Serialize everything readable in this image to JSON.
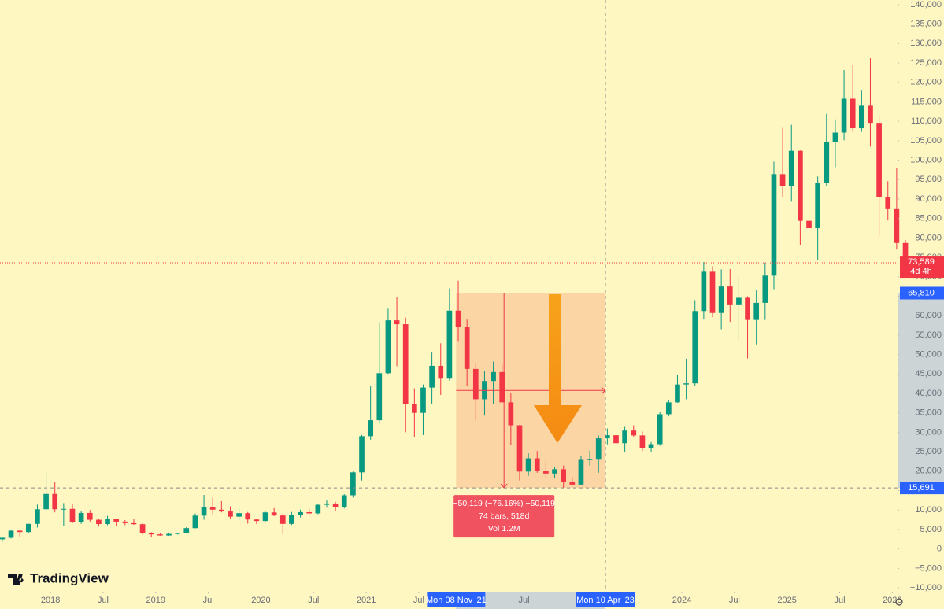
{
  "brand": "TradingView",
  "chart_data": {
    "type": "candlestick",
    "x": [
      "2017-07",
      "2017-08",
      "2017-09",
      "2017-10",
      "2017-11",
      "2017-12",
      "2018-01",
      "2018-02",
      "2018-03",
      "2018-04",
      "2018-05",
      "2018-06",
      "2018-07",
      "2018-08",
      "2018-09",
      "2018-10",
      "2018-11",
      "2018-12",
      "2019-01",
      "2019-02",
      "2019-03",
      "2019-04",
      "2019-05",
      "2019-06",
      "2019-07",
      "2019-08",
      "2019-09",
      "2019-10",
      "2019-11",
      "2019-12",
      "2020-01",
      "2020-02",
      "2020-03",
      "2020-04",
      "2020-05",
      "2020-06",
      "2020-07",
      "2020-08",
      "2020-09",
      "2020-10",
      "2020-11",
      "2020-12",
      "2021-01",
      "2021-02",
      "2021-03",
      "2021-04",
      "2021-05",
      "2021-06",
      "2021-07",
      "2021-08",
      "2021-09",
      "2021-10",
      "2021-11",
      "2021-12",
      "2022-01",
      "2022-02",
      "2022-03",
      "2022-04",
      "2022-05",
      "2022-06",
      "2022-07",
      "2022-08",
      "2022-09",
      "2022-10",
      "2022-11",
      "2022-12",
      "2023-01",
      "2023-02",
      "2023-03",
      "2023-04",
      "2023-05",
      "2023-06",
      "2023-07",
      "2023-08",
      "2023-09",
      "2023-10",
      "2023-11",
      "2023-12",
      "2024-01",
      "2024-02",
      "2024-03",
      "2024-04",
      "2024-05",
      "2024-06",
      "2024-07",
      "2024-08",
      "2024-09",
      "2024-10",
      "2024-11",
      "2024-12",
      "2025-01",
      "2025-02",
      "2025-03",
      "2025-04",
      "2025-05",
      "2025-06",
      "2025-07",
      "2025-08",
      "2025-09",
      "2025-10",
      "2025-11",
      "2025-12",
      "2026-01",
      "2026-02"
    ],
    "open": [
      2480,
      2870,
      4700,
      4340,
      6450,
      10200,
      14150,
      10200,
      10300,
      6950,
      9250,
      7500,
      6400,
      7730,
      7030,
      6630,
      6370,
      4040,
      3740,
      3460,
      3860,
      4100,
      5350,
      8570,
      10820,
      10090,
      9630,
      8300,
      9200,
      7570,
      7190,
      9390,
      8600,
      6440,
      8650,
      9450,
      9140,
      11350,
      11680,
      10790,
      13800,
      19700,
      29000,
      33100,
      45200,
      58800,
      57800,
      37300,
      35000,
      41500,
      47100,
      43800,
      61300,
      57000,
      46300,
      38500,
      43200,
      45500,
      37700,
      31800,
      19900,
      23300,
      20050,
      19400,
      20500,
      17150,
      16550,
      23100,
      23150,
      28450,
      29250,
      27200,
      30450,
      29200,
      25950,
      26950,
      34650,
      37700,
      42300,
      42600,
      61200,
      71300,
      60700,
      67500,
      62700,
      64600,
      58900,
      63300,
      70300,
      96400,
      93400,
      102400,
      84400,
      82500,
      94200,
      104600,
      107100,
      115800,
      108200,
      114000,
      109600,
      90400,
      87600,
      78700
    ],
    "high": [
      2950,
      4750,
      4980,
      6470,
      11400,
      19700,
      17250,
      11800,
      11700,
      9750,
      10000,
      7750,
      8500,
      7750,
      7420,
      7680,
      6600,
      4300,
      4130,
      4200,
      4150,
      5600,
      9100,
      13900,
      13200,
      12300,
      10950,
      10500,
      9500,
      7750,
      9600,
      10500,
      9200,
      9500,
      10080,
      10400,
      11450,
      12480,
      12100,
      14100,
      19900,
      29300,
      41900,
      58350,
      61800,
      64850,
      59500,
      41300,
      42300,
      50500,
      52900,
      67000,
      69000,
      59000,
      47900,
      45800,
      48200,
      47400,
      40000,
      31900,
      24600,
      25200,
      22700,
      21000,
      21450,
      18400,
      23900,
      25250,
      29200,
      31000,
      29800,
      31400,
      31800,
      30200,
      27500,
      35200,
      38400,
      44700,
      48950,
      64000,
      73800,
      72700,
      71900,
      72000,
      70000,
      65000,
      66500,
      73600,
      99600,
      108300,
      109100,
      102500,
      95000,
      95800,
      111900,
      110500,
      123200,
      124400,
      117900,
      126200,
      111200,
      94600,
      97900,
      79500
    ],
    "low": [
      1840,
      2700,
      2970,
      4150,
      5500,
      9700,
      9400,
      5900,
      6600,
      6450,
      7050,
      5750,
      6100,
      5880,
      6100,
      6200,
      3650,
      3150,
      3400,
      3400,
      3700,
      4050,
      5300,
      7500,
      9000,
      9400,
      7800,
      7300,
      6500,
      6450,
      6900,
      8450,
      3800,
      6150,
      8100,
      8900,
      8950,
      10600,
      9850,
      10400,
      13200,
      17600,
      28100,
      32300,
      45000,
      47000,
      30000,
      28800,
      29300,
      37300,
      39600,
      43300,
      53300,
      42000,
      33000,
      34300,
      37200,
      37700,
      26700,
      17600,
      18800,
      19600,
      18150,
      18200,
      15700,
      16300,
      16500,
      21400,
      19600,
      26900,
      25800,
      24800,
      28900,
      25200,
      24900,
      26550,
      34100,
      37600,
      38500,
      41900,
      59000,
      59600,
      56500,
      58400,
      53500,
      49000,
      52600,
      58900,
      66800,
      90500,
      89300,
      78200,
      76600,
      74400,
      93400,
      98200,
      105100,
      107300,
      107300,
      103500,
      80600,
      84500,
      77000,
      72000
    ],
    "close": [
      2870,
      4700,
      4340,
      6450,
      10200,
      14150,
      10200,
      10300,
      6950,
      9250,
      7500,
      6400,
      7730,
      7030,
      6630,
      6370,
      4040,
      3740,
      3460,
      3860,
      4100,
      5350,
      8570,
      10820,
      10090,
      9630,
      8300,
      9200,
      7570,
      7190,
      9390,
      8600,
      6440,
      8650,
      9450,
      9140,
      11350,
      11680,
      10790,
      13800,
      19700,
      29000,
      33100,
      45200,
      58800,
      57800,
      37300,
      35000,
      41500,
      47100,
      43800,
      61300,
      57000,
      46300,
      38500,
      43200,
      45500,
      37700,
      31800,
      19900,
      23300,
      20050,
      19400,
      20500,
      17150,
      16550,
      23100,
      23150,
      28450,
      29250,
      27200,
      30450,
      29200,
      25950,
      26950,
      34650,
      37700,
      42300,
      42600,
      61200,
      71300,
      60700,
      67500,
      62700,
      64600,
      58900,
      63300,
      70300,
      96400,
      93400,
      102400,
      84400,
      82500,
      94200,
      104600,
      107100,
      115800,
      108200,
      114000,
      109600,
      90400,
      87600,
      78700,
      73589
    ],
    "up_color": "#089981",
    "down_color": "#f23645",
    "xlim": [
      2017.52,
      2026.05
    ],
    "xticks": [
      2018,
      {
        "value": 2018.5,
        "label": "Jul"
      },
      2019,
      {
        "value": 2019.5,
        "label": "Jul"
      },
      2020,
      {
        "value": 2020.5,
        "label": "Jul"
      },
      2021,
      {
        "value": 2021.5,
        "label": "Jul"
      },
      {
        "value": 2022.5,
        "label": "Jul"
      },
      2024,
      {
        "value": 2024.5,
        "label": "Jul"
      },
      2025,
      {
        "value": 2025.5,
        "label": "Jul"
      },
      2026
    ],
    "ylim": [
      -11000,
      141200
    ],
    "yticks": [
      {
        "value": -10000,
        "label": "−10,000"
      },
      {
        "value": -5000,
        "label": "−5,000"
      },
      0,
      {
        "value": 5000,
        "label": "5,000"
      },
      {
        "value": 10000,
        "label": "10,000"
      },
      {
        "value": 15000,
        "label": "15,000"
      },
      {
        "value": 20000,
        "label": "20,000"
      },
      {
        "value": 25000,
        "label": "25,000"
      },
      {
        "value": 30000,
        "label": "30,000"
      },
      {
        "value": 35000,
        "label": "35,000"
      },
      {
        "value": 40000,
        "label": "40,000"
      },
      {
        "value": 45000,
        "label": "45,000"
      },
      {
        "value": 50000,
        "label": "50,000"
      },
      {
        "value": 55000,
        "label": "55,000"
      },
      {
        "value": 60000,
        "label": "60,000"
      },
      {
        "value": 65000,
        "label": "65,000"
      },
      {
        "value": 70000,
        "label": "70,000"
      },
      {
        "value": 75000,
        "label": "75,000"
      },
      {
        "value": 80000,
        "label": "80,000"
      },
      {
        "value": 85000,
        "label": "85,000"
      },
      {
        "value": 90000,
        "label": "90,000"
      },
      {
        "value": 95000,
        "label": "95,000"
      },
      {
        "value": 100000,
        "label": "100,000"
      },
      {
        "value": 105000,
        "label": "105,000"
      },
      {
        "value": 110000,
        "label": "110,000"
      },
      {
        "value": 115000,
        "label": "115,000"
      },
      {
        "value": 120000,
        "label": "120,000"
      },
      {
        "value": 125000,
        "label": "125,000"
      },
      {
        "value": 130000,
        "label": "130,000"
      },
      {
        "value": 135000,
        "label": "135,000"
      },
      {
        "value": 140000,
        "label": "140,000"
      }
    ],
    "grid": false,
    "last_price": {
      "value": 73589,
      "label": "73,589",
      "countdown": "4d 4h"
    },
    "measure": {
      "start_x": 2021.855,
      "end_x": 2023.274,
      "start_label": "Mon 08 Nov '21",
      "end_label": "Mon 10 Apr '23",
      "from": {
        "value": 65810,
        "label": "65,810"
      },
      "to": {
        "value": 15691,
        "label": "15,691"
      },
      "change_label": "−50,119 (−76.16%) −50,119",
      "bars_label": "74 bars, 518d",
      "volume_label": "Vol 1.2M"
    }
  }
}
